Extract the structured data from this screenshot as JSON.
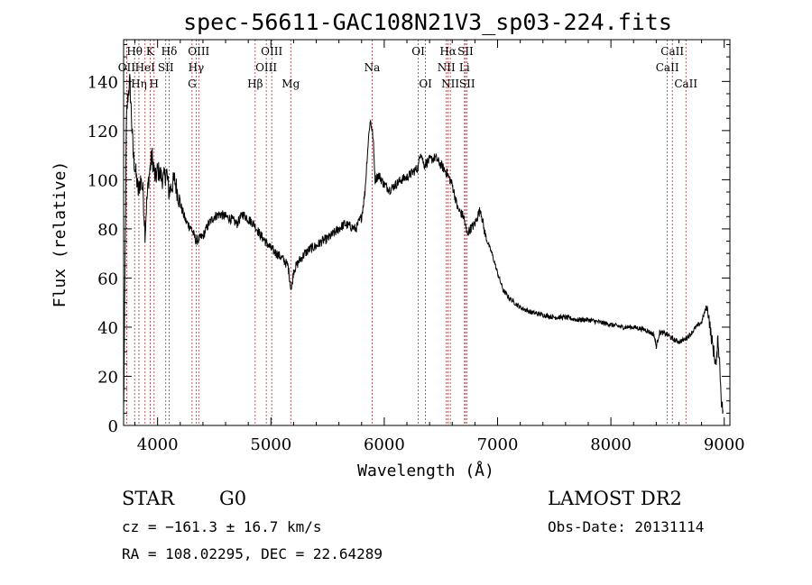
{
  "chart_data": {
    "type": "line",
    "title": "spec-56611-GAC108N21V3_sp03-224.fits",
    "xlabel": "Wavelength (Å)",
    "ylabel": "Flux (relative)",
    "xlim": [
      3700,
      9050
    ],
    "ylim": [
      0,
      157
    ],
    "x_ticks": [
      "4000",
      "5000",
      "6000",
      "7000",
      "8000",
      "9000"
    ],
    "y_ticks": [
      "0",
      "20",
      "40",
      "60",
      "80",
      "100",
      "120",
      "140"
    ],
    "x_tick_values": [
      4000,
      5000,
      6000,
      7000,
      8000,
      9000
    ],
    "y_tick_values": [
      0,
      20,
      40,
      60,
      80,
      100,
      120,
      140
    ],
    "line_color": "#000000",
    "marker_color": "#b03030",
    "spectrum_anchors": [
      [
        3700,
        5
      ],
      [
        3712,
        60
      ],
      [
        3725,
        125
      ],
      [
        3740,
        135
      ],
      [
        3755,
        140
      ],
      [
        3770,
        125
      ],
      [
        3785,
        110
      ],
      [
        3800,
        105
      ],
      [
        3830,
        95
      ],
      [
        3850,
        100
      ],
      [
        3870,
        96
      ],
      [
        3890,
        78
      ],
      [
        3900,
        88
      ],
      [
        3920,
        100
      ],
      [
        3950,
        110
      ],
      [
        3980,
        100
      ],
      [
        4000,
        104
      ],
      [
        4050,
        100
      ],
      [
        4080,
        103
      ],
      [
        4100,
        95
      ],
      [
        4150,
        100
      ],
      [
        4200,
        90
      ],
      [
        4250,
        83
      ],
      [
        4300,
        80
      ],
      [
        4340,
        75
      ],
      [
        4400,
        77
      ],
      [
        4450,
        82
      ],
      [
        4500,
        85
      ],
      [
        4550,
        86
      ],
      [
        4600,
        85
      ],
      [
        4650,
        84
      ],
      [
        4700,
        82
      ],
      [
        4750,
        86
      ],
      [
        4800,
        84
      ],
      [
        4850,
        82
      ],
      [
        4900,
        78
      ],
      [
        4950,
        75
      ],
      [
        5000,
        72
      ],
      [
        5050,
        70
      ],
      [
        5100,
        68
      ],
      [
        5150,
        65
      ],
      [
        5180,
        55
      ],
      [
        5200,
        63
      ],
      [
        5250,
        67
      ],
      [
        5300,
        70
      ],
      [
        5350,
        72
      ],
      [
        5400,
        73
      ],
      [
        5450,
        75
      ],
      [
        5500,
        76
      ],
      [
        5550,
        78
      ],
      [
        5600,
        80
      ],
      [
        5650,
        82
      ],
      [
        5700,
        81
      ],
      [
        5750,
        80
      ],
      [
        5800,
        85
      ],
      [
        5830,
        95
      ],
      [
        5850,
        110
      ],
      [
        5870,
        122
      ],
      [
        5880,
        124
      ],
      [
        5900,
        118
      ],
      [
        5920,
        100
      ],
      [
        5950,
        102
      ],
      [
        6000,
        98
      ],
      [
        6050,
        96
      ],
      [
        6100,
        98
      ],
      [
        6150,
        100
      ],
      [
        6200,
        101
      ],
      [
        6250,
        103
      ],
      [
        6300,
        105
      ],
      [
        6320,
        112
      ],
      [
        6350,
        106
      ],
      [
        6400,
        108
      ],
      [
        6450,
        109
      ],
      [
        6500,
        106
      ],
      [
        6550,
        103
      ],
      [
        6600,
        98
      ],
      [
        6650,
        88
      ],
      [
        6700,
        85
      ],
      [
        6730,
        78
      ],
      [
        6760,
        80
      ],
      [
        6800,
        82
      ],
      [
        6830,
        86
      ],
      [
        6850,
        88
      ],
      [
        6880,
        80
      ],
      [
        6900,
        76
      ],
      [
        6950,
        70
      ],
      [
        7000,
        62
      ],
      [
        7050,
        55
      ],
      [
        7100,
        52
      ],
      [
        7150,
        50
      ],
      [
        7200,
        48
      ],
      [
        7250,
        47
      ],
      [
        7300,
        46
      ],
      [
        7400,
        45
      ],
      [
        7500,
        44
      ],
      [
        7600,
        44
      ],
      [
        7700,
        43
      ],
      [
        7800,
        43
      ],
      [
        7900,
        42
      ],
      [
        8000,
        41
      ],
      [
        8100,
        40
      ],
      [
        8200,
        40
      ],
      [
        8300,
        39
      ],
      [
        8380,
        37
      ],
      [
        8400,
        32
      ],
      [
        8430,
        38
      ],
      [
        8500,
        37
      ],
      [
        8550,
        35
      ],
      [
        8600,
        34
      ],
      [
        8650,
        35
      ],
      [
        8700,
        37
      ],
      [
        8750,
        40
      ],
      [
        8800,
        42
      ],
      [
        8820,
        45
      ],
      [
        8840,
        48
      ],
      [
        8860,
        46
      ],
      [
        8880,
        38
      ],
      [
        8900,
        32
      ],
      [
        8930,
        24
      ],
      [
        8945,
        36
      ],
      [
        8960,
        25
      ],
      [
        8975,
        10
      ],
      [
        8990,
        5
      ]
    ],
    "lines": [
      {
        "name": "Hθ",
        "wl": 3797,
        "row": 0
      },
      {
        "name": "OII",
        "wl": 3727,
        "row": 1
      },
      {
        "name": "Hη",
        "wl": 3835,
        "row": 2
      },
      {
        "name": "K",
        "wl": 3934,
        "row": 0
      },
      {
        "name": "HeI",
        "wl": 3889,
        "row": 1
      },
      {
        "name": "H",
        "wl": 3969,
        "row": 2
      },
      {
        "name": "Hδ",
        "wl": 4102,
        "row": 0
      },
      {
        "name": "SII",
        "wl": 4072,
        "row": 1
      },
      {
        "name": "OIII",
        "wl": 4363,
        "row": 0
      },
      {
        "name": "Hγ",
        "wl": 4340,
        "row": 1
      },
      {
        "name": "G",
        "wl": 4304,
        "row": 2
      },
      {
        "name": "Hβ",
        "wl": 4861,
        "row": 2
      },
      {
        "name": "OIII",
        "wl": 5007,
        "row": 0
      },
      {
        "name": "OIII",
        "wl": 4959,
        "row": 1
      },
      {
        "name": "Mg",
        "wl": 5175,
        "row": 2
      },
      {
        "name": "Na",
        "wl": 5893,
        "row": 1
      },
      {
        "name": "OI",
        "wl": 6300,
        "row": 0
      },
      {
        "name": "OI",
        "wl": 6364,
        "row": 2
      },
      {
        "name": "Hα",
        "wl": 6563,
        "row": 0
      },
      {
        "name": "NII",
        "wl": 6548,
        "row": 1
      },
      {
        "name": "NII",
        "wl": 6583,
        "row": 2
      },
      {
        "name": "SII",
        "wl": 6717,
        "row": 0
      },
      {
        "name": "Li",
        "wl": 6708,
        "row": 1
      },
      {
        "name": "SII",
        "wl": 6731,
        "row": 2
      },
      {
        "name": "CaII",
        "wl": 8542,
        "row": 0
      },
      {
        "name": "CaII",
        "wl": 8498,
        "row": 1
      },
      {
        "name": "CaII",
        "wl": 8662,
        "row": 2
      }
    ]
  },
  "info": {
    "object_class": "STAR",
    "subclass": "G0",
    "survey": "LAMOST DR2",
    "cz": "cz = −161.3 ± 16.7 km/s",
    "obs_date": "Obs-Date: 20131114",
    "coords": "RA = 108.02295, DEC =  22.64289"
  }
}
